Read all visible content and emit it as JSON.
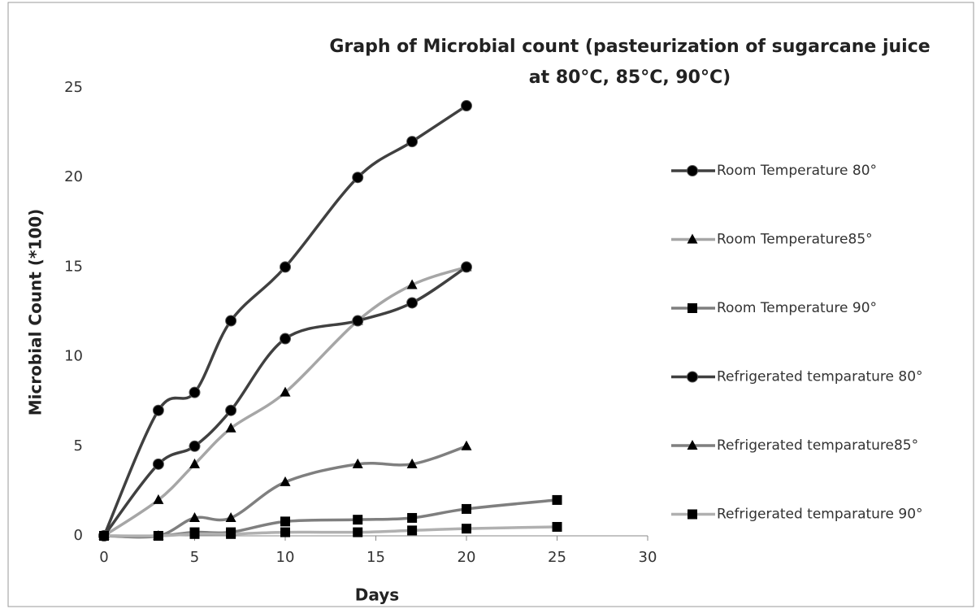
{
  "chart_data": {
    "type": "line",
    "title": [
      "Graph of Microbial count (pasteurization of sugarcane juice",
      "at 80°C, 85°C, 90°C)"
    ],
    "xlabel": "Days",
    "ylabel": "Microbial Count  (*100)",
    "xlim": [
      0,
      30
    ],
    "xticks": [
      0,
      5,
      10,
      15,
      20,
      25,
      30
    ],
    "ylim": [
      0,
      25
    ],
    "yticks": [
      0,
      5,
      10,
      15,
      20,
      25
    ],
    "legend": "right",
    "series": [
      {
        "name": "Room Temperature 80°",
        "color": "#404040",
        "marker": "circle",
        "x": [
          0,
          3,
          5,
          7,
          10,
          14,
          17,
          20
        ],
        "values": [
          0,
          7,
          8,
          12,
          15,
          20,
          22,
          24
        ]
      },
      {
        "name": "Room Temperature85°",
        "color": "#a6a6a6",
        "marker": "triangle",
        "x": [
          0,
          3,
          5,
          7,
          10,
          14,
          17,
          20
        ],
        "values": [
          0,
          2,
          4,
          6,
          8,
          12,
          14,
          15
        ]
      },
      {
        "name": "Room Temperature 90°",
        "color": "#7f7f7f",
        "marker": "square",
        "x": [
          0,
          3,
          5,
          7,
          10,
          14,
          17,
          20,
          25
        ],
        "values": [
          0,
          0,
          0.2,
          0.2,
          0.8,
          0.9,
          1,
          1.5,
          2
        ]
      },
      {
        "name": "Refrigerated temparature 80°",
        "color": "#404040",
        "marker": "circle",
        "x": [
          0,
          3,
          5,
          7,
          10,
          14,
          17,
          20
        ],
        "values": [
          0,
          4,
          5,
          7,
          11,
          12,
          13,
          15
        ]
      },
      {
        "name": "Refrigerated temparature85°",
        "color": "#7f7f7f",
        "marker": "triangle",
        "x": [
          0,
          3,
          5,
          7,
          10,
          14,
          17,
          20
        ],
        "values": [
          0,
          0,
          1,
          1,
          3,
          4,
          4,
          5
        ]
      },
      {
        "name": "Refrigerated temparature 90°",
        "color": "#b0b0b0",
        "marker": "square",
        "x": [
          0,
          3,
          5,
          7,
          10,
          14,
          17,
          20,
          25
        ],
        "values": [
          0,
          0,
          0.1,
          0.1,
          0.2,
          0.2,
          0.3,
          0.4,
          0.5
        ]
      }
    ]
  }
}
